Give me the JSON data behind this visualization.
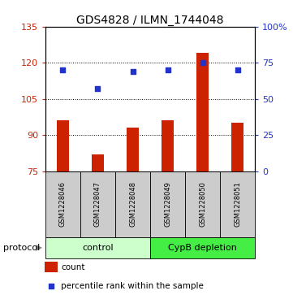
{
  "title": "GDS4828 / ILMN_1744048",
  "samples": [
    "GSM1228046",
    "GSM1228047",
    "GSM1228048",
    "GSM1228049",
    "GSM1228050",
    "GSM1228051"
  ],
  "counts": [
    96,
    82,
    93,
    96,
    124,
    95
  ],
  "percentiles": [
    70,
    57,
    69,
    70,
    75,
    70
  ],
  "ylim_left": [
    75,
    135
  ],
  "ylim_right": [
    0,
    100
  ],
  "yticks_left": [
    75,
    90,
    105,
    120,
    135
  ],
  "yticks_right": [
    0,
    25,
    50,
    75,
    100
  ],
  "ytick_labels_right": [
    "0",
    "25",
    "50",
    "75",
    "100%"
  ],
  "grid_lines": [
    90,
    105,
    120
  ],
  "bar_color": "#cc2200",
  "dot_color": "#2233cc",
  "bar_width": 0.35,
  "groups": [
    {
      "label": "control",
      "indices": [
        0,
        1,
        2
      ],
      "color": "#ccffcc"
    },
    {
      "label": "CypB depletion",
      "indices": [
        3,
        4,
        5
      ],
      "color": "#44ee44"
    }
  ],
  "sample_box_color": "#cccccc",
  "legend_bar_label": "count",
  "legend_dot_label": "percentile rank within the sample",
  "protocol_label": "protocol",
  "left_axis_color": "#cc2200",
  "right_axis_color": "#2233cc",
  "title_fontsize": 10,
  "tick_fontsize": 8,
  "sample_fontsize": 6,
  "group_fontsize": 8,
  "legend_fontsize": 7.5
}
